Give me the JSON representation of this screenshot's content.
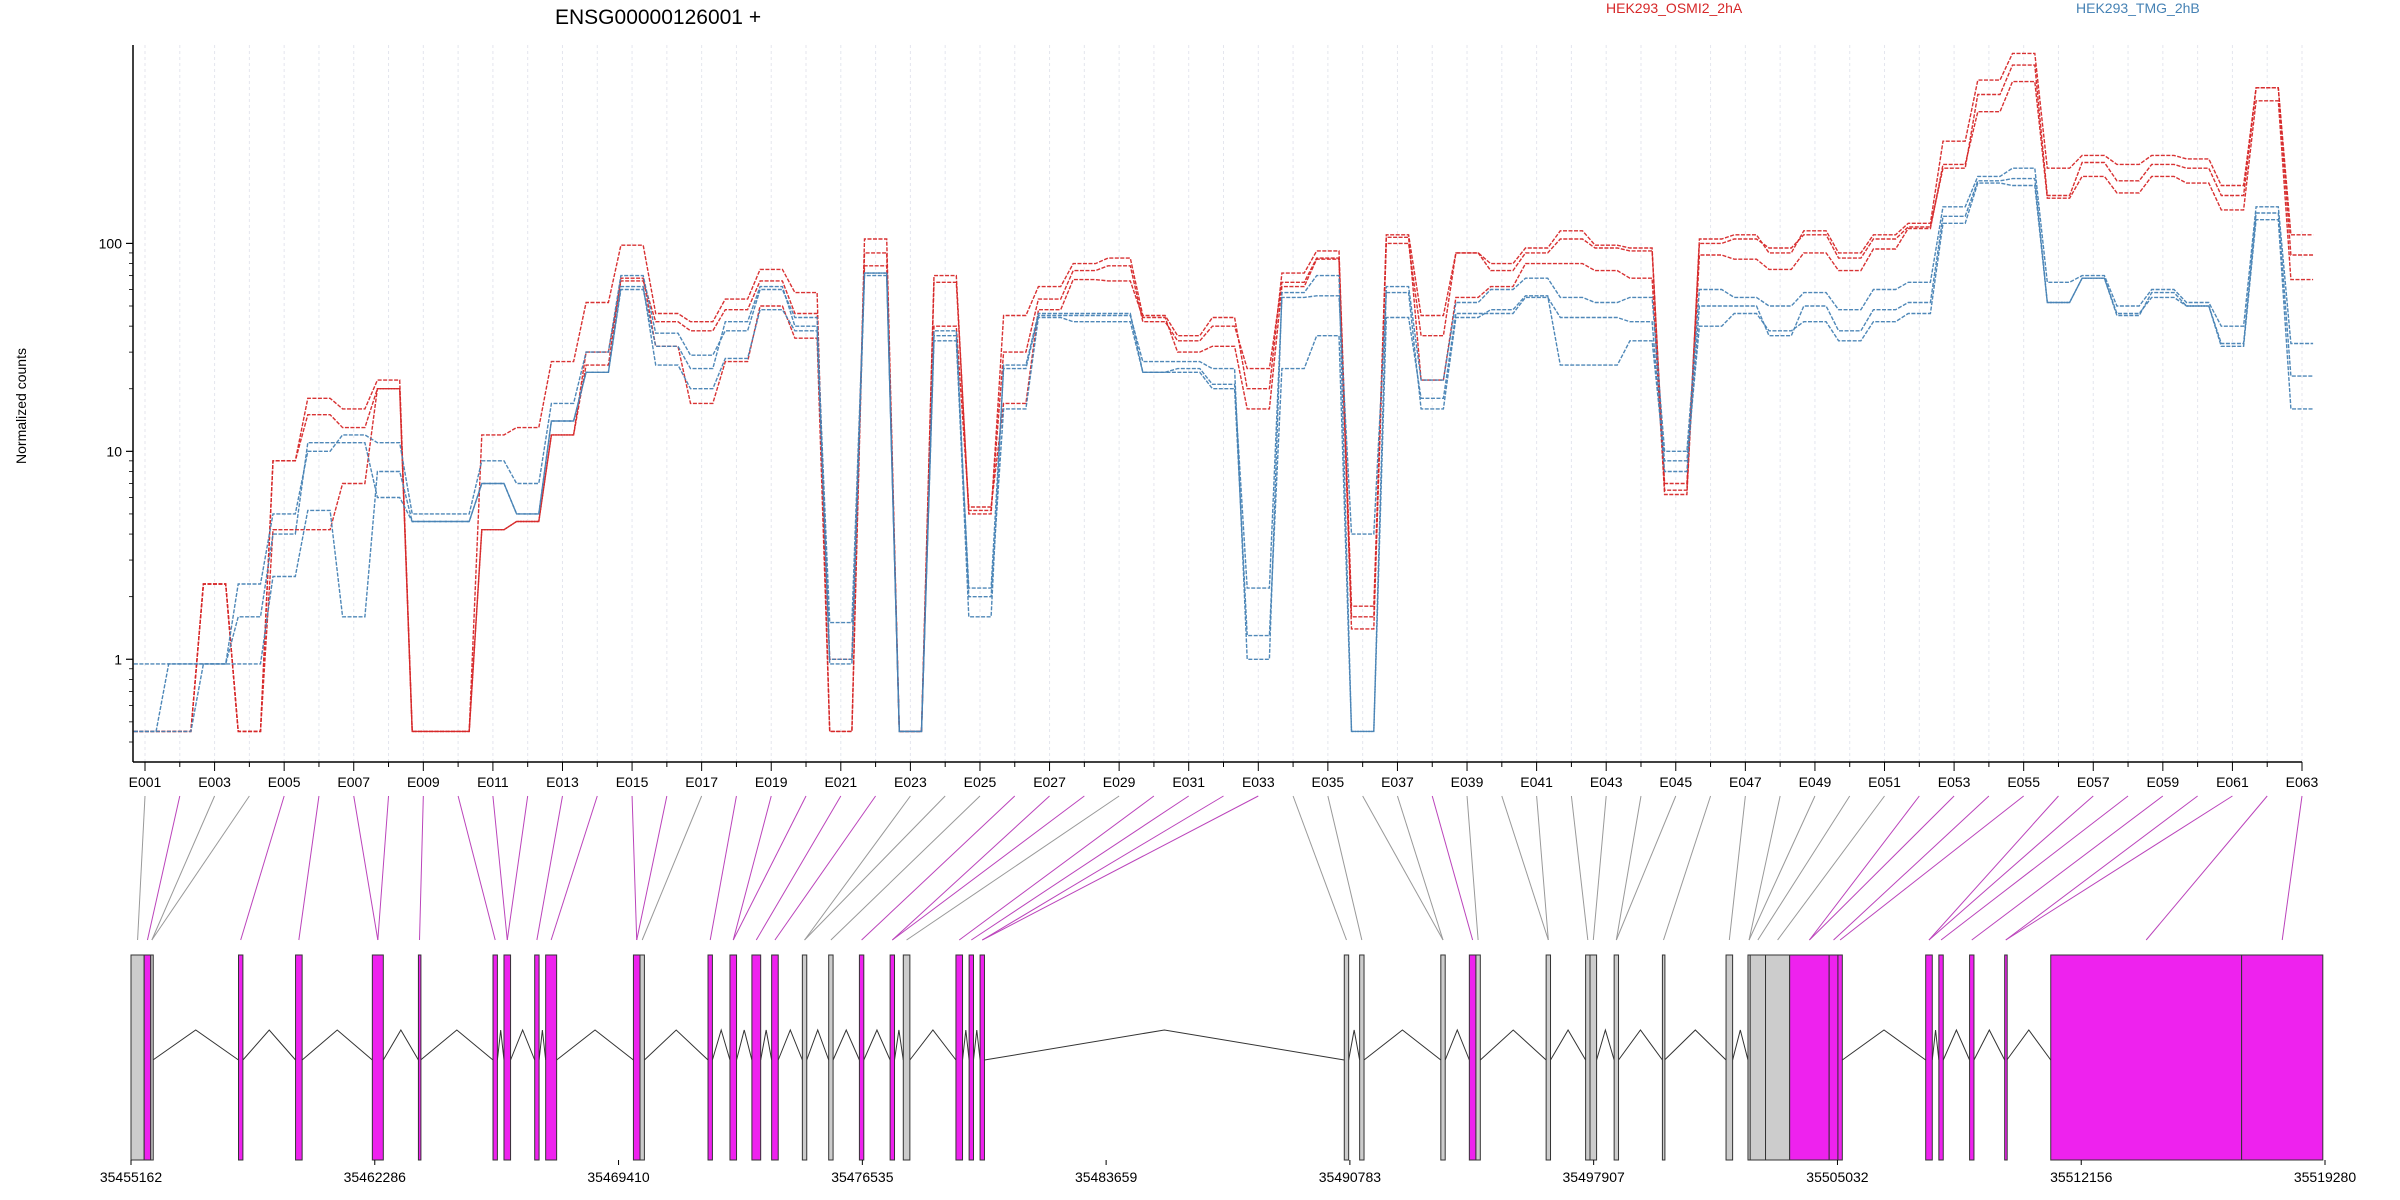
{
  "title": "ENSG00000126001 +",
  "ylabel": "Normalized counts",
  "colors": {
    "HEK293_OSMI2_2hA": "#d62728",
    "HEK293_TMG_2hB": "#4682b4",
    "exon_diff": "#ee22ee",
    "exon_plain": "#cccccc",
    "link_diff": "#bb44bb",
    "link_plain": "#999999"
  },
  "chart_data": {
    "type": "line",
    "yscale": "log",
    "ylim": [
      0.4,
      900
    ],
    "yticks": [
      1,
      10,
      100
    ],
    "yticklabels": [
      "1",
      "10",
      "100"
    ],
    "legend": [
      {
        "name": "HEK293_OSMI2_2hA",
        "color": "#d62728"
      },
      {
        "name": "HEK293_TMG_2hB",
        "color": "#4682b4"
      }
    ],
    "legend_placement": "top",
    "exons": [
      "E001",
      "E002",
      "E003",
      "E004",
      "E005",
      "E006",
      "E007",
      "E008",
      "E009",
      "E010",
      "E011",
      "E012",
      "E013",
      "E014",
      "E015",
      "E016",
      "E017",
      "E018",
      "E019",
      "E020",
      "E021",
      "E022",
      "E023",
      "E024",
      "E025",
      "E026",
      "E027",
      "E028",
      "E029",
      "E030",
      "E031",
      "E032",
      "E033",
      "E034",
      "E035",
      "E036",
      "E037",
      "E038",
      "E039",
      "E040",
      "E041",
      "E042",
      "E043",
      "E044",
      "E045",
      "E046",
      "E047",
      "E048",
      "E049",
      "E050",
      "E051",
      "E052",
      "E053",
      "E054",
      "E055",
      "E056",
      "E057",
      "E058",
      "E059",
      "E060",
      "E061",
      "E062",
      "E063"
    ],
    "xticklabels": [
      "E001",
      "E003",
      "E005",
      "E007",
      "E009",
      "E011",
      "E013",
      "E015",
      "E017",
      "E019",
      "E021",
      "E023",
      "E025",
      "E027",
      "E029",
      "E031",
      "E033",
      "E035",
      "E037",
      "E039",
      "E041",
      "E043",
      "E045",
      "E047",
      "E049",
      "E051",
      "E053",
      "E055",
      "E057",
      "E059",
      "E061",
      "E063"
    ],
    "series_A": {
      "name": "HEK293_OSMI2_2hA",
      "replicates": [
        [
          0.45,
          0.45,
          2.3,
          0.45,
          9,
          15,
          13,
          20,
          0.45,
          0.45,
          4.2,
          4.6,
          12,
          26,
          68,
          32,
          17,
          27,
          50,
          35,
          0.45,
          105,
          0.45,
          70,
          5.0,
          45,
          62,
          80,
          85,
          45,
          36,
          44,
          20,
          72,
          92,
          1.8,
          110,
          45,
          90,
          80,
          95,
          115,
          98,
          95,
          6.5,
          105,
          110,
          90,
          115,
          90,
          110,
          125,
          310,
          610,
          820,
          230,
          265,
          240,
          265,
          255,
          190,
          560,
          110
        ],
        [
          0.45,
          0.45,
          2.3,
          0.45,
          9,
          18,
          16,
          22,
          0.45,
          0.45,
          12,
          13,
          27,
          52,
          98,
          46,
          42,
          54,
          75,
          58,
          0.45,
          90,
          0.45,
          65,
          5.2,
          30,
          54,
          74,
          78,
          42,
          34,
          40,
          25,
          65,
          85,
          1.6,
          100,
          36,
          90,
          74,
          90,
          105,
          95,
          92,
          7.0,
          100,
          105,
          95,
          110,
          85,
          105,
          120,
          230,
          520,
          720,
          170,
          245,
          200,
          240,
          230,
          170,
          560,
          88
        ],
        [
          0.45,
          0.45,
          2.3,
          0.45,
          4.2,
          4.2,
          7,
          20,
          0.45,
          0.45,
          4.2,
          4.6,
          12,
          30,
          66,
          42,
          38,
          48,
          66,
          46,
          1.0,
          78,
          0.45,
          40,
          5.4,
          17,
          48,
          67,
          66,
          44,
          30,
          32,
          16,
          62,
          84,
          1.4,
          107,
          22,
          55,
          62,
          80,
          80,
          74,
          68,
          6.2,
          88,
          84,
          75,
          90,
          74,
          94,
          118,
          240,
          430,
          600,
          165,
          210,
          175,
          210,
          195,
          145,
          485,
          67
        ]
      ]
    },
    "series_B": {
      "name": "HEK293_TMG_2hB",
      "replicates": [
        [
          0.95,
          0.95,
          0.95,
          2.3,
          5,
          10,
          12,
          11,
          5,
          5,
          9,
          7,
          17,
          30,
          70,
          37,
          29,
          38,
          60,
          44,
          1.0,
          72,
          0.45,
          34,
          2.2,
          25,
          45,
          45,
          45,
          27,
          27,
          25,
          1.0,
          58,
          70,
          0.45,
          62,
          22,
          52,
          60,
          68,
          55,
          52,
          55,
          10,
          60,
          55,
          50,
          58,
          48,
          60,
          65,
          150,
          210,
          230,
          65,
          70,
          50,
          60,
          52,
          40,
          150,
          33
        ],
        [
          0.45,
          0.95,
          0.95,
          1.6,
          4,
          11,
          11,
          6,
          4.6,
          4.6,
          7,
          5,
          14,
          24,
          62,
          26,
          20,
          28,
          48,
          38,
          0.95,
          70,
          0.45,
          36,
          1.6,
          26,
          46,
          46,
          46,
          24,
          25,
          21,
          2.2,
          55,
          56,
          4.0,
          58,
          16,
          44,
          48,
          56,
          26,
          26,
          34,
          9,
          40,
          46,
          38,
          42,
          34,
          42,
          46,
          125,
          195,
          190,
          52,
          68,
          45,
          58,
          50,
          33,
          140,
          23
        ],
        [
          0.45,
          0.45,
          0.95,
          0.95,
          2.5,
          5.2,
          1.6,
          8,
          4.6,
          4.6,
          7,
          5,
          14,
          24,
          60,
          32,
          25,
          42,
          62,
          40,
          1.5,
          72,
          0.45,
          38,
          2.0,
          16,
          44,
          42,
          42,
          24,
          24,
          20,
          1.3,
          25,
          36,
          0.45,
          44,
          18,
          46,
          46,
          55,
          44,
          44,
          42,
          8,
          50,
          50,
          36,
          50,
          38,
          48,
          52,
          135,
          200,
          205,
          52,
          68,
          46,
          55,
          50,
          32,
          130,
          16
        ]
      ]
    },
    "genomic_ticks": [
      "35455162",
      "35462286",
      "35469410",
      "35476535",
      "35483659",
      "35490783",
      "35497907",
      "35505032",
      "35512156",
      "35519280"
    ],
    "genomic_range": [
      35455162,
      35519280
    ]
  }
}
